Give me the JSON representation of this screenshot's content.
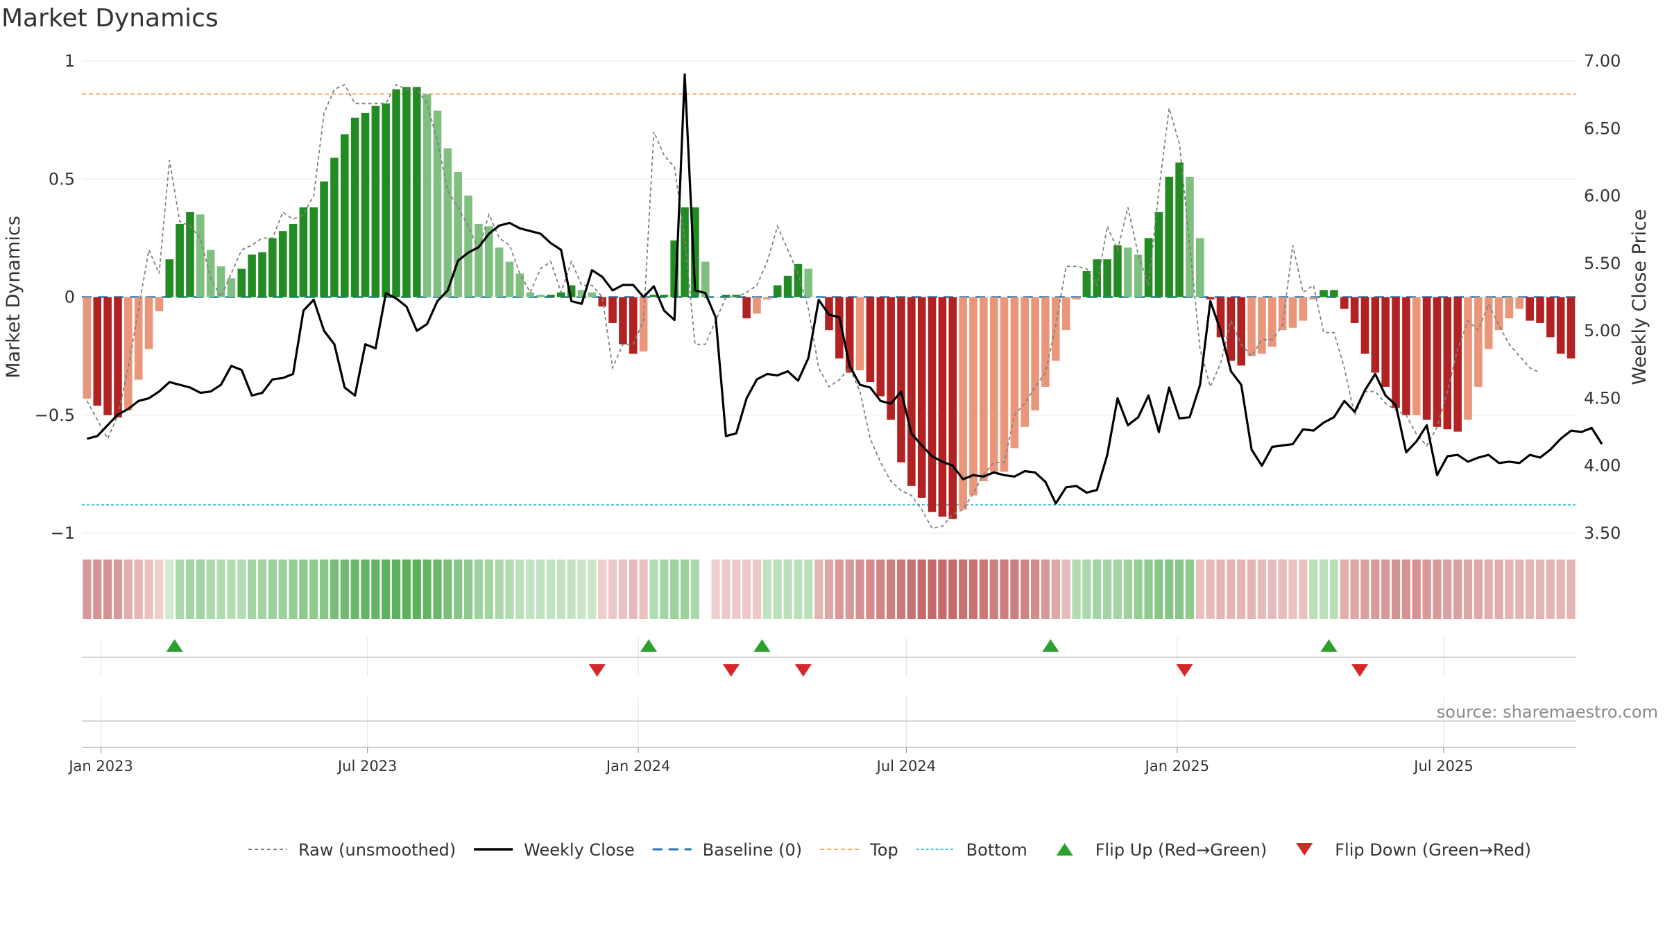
{
  "title": "Market Dynamics",
  "source": "source: sharemaestro.com",
  "colors": {
    "strong_green": "#228b22",
    "light_green": "#7fbf7f",
    "strong_red": "#b22222",
    "light_red": "#e9967a",
    "raw": "#808080",
    "close": "#000000",
    "baseline": "#1f77b4",
    "top": "#f0a860",
    "bottom": "#3cc0d8",
    "flip_up": "#2ca02c",
    "flip_down": "#d62728"
  },
  "chart_data": {
    "type": "bar",
    "x_start": "2022-12-19",
    "frequency": "weekly",
    "y_left": {
      "label": "Market Dynamics",
      "lim": [
        -1,
        1
      ],
      "ticks": [
        1,
        0.5,
        0,
        -0.5,
        -1
      ]
    },
    "y_right": {
      "label": "Weekly Close Price",
      "lim": [
        3.5,
        7.0
      ],
      "ticks": [
        "7.00",
        "6.50",
        "6.00",
        "5.50",
        "5.00",
        "4.50",
        "4.00",
        "3.50"
      ]
    },
    "x_ticks": [
      {
        "date": "2023-01-01",
        "label": "Jan 2023"
      },
      {
        "date": "2023-07-01",
        "label": "Jul 2023"
      },
      {
        "date": "2024-01-01",
        "label": "Jan 2024"
      },
      {
        "date": "2024-07-01",
        "label": "Jul 2024"
      },
      {
        "date": "2025-01-01",
        "label": "Jan 2025"
      },
      {
        "date": "2025-07-01",
        "label": "Jul 2025"
      }
    ],
    "top_line": 0.86,
    "bottom_line": -0.88,
    "smoothed": [
      -0.43,
      -0.46,
      -0.5,
      -0.51,
      -0.48,
      -0.35,
      -0.22,
      -0.06,
      0.16,
      0.31,
      0.36,
      0.35,
      0.2,
      0.13,
      0.08,
      0.12,
      0.18,
      0.19,
      0.25,
      0.28,
      0.31,
      0.38,
      0.38,
      0.49,
      0.59,
      0.69,
      0.76,
      0.78,
      0.81,
      0.82,
      0.88,
      0.89,
      0.89,
      0.86,
      0.79,
      0.63,
      0.53,
      0.43,
      0.31,
      0.3,
      0.21,
      0.15,
      0.1,
      0.02,
      0.01,
      0.01,
      0.02,
      0.05,
      0.03,
      0.02,
      -0.04,
      -0.11,
      -0.2,
      -0.24,
      -0.23,
      0.01,
      0.01,
      0.24,
      0.38,
      0.38,
      0.15,
      0.0,
      0.01,
      0.01,
      -0.09,
      -0.07,
      -0.01,
      0.05,
      0.09,
      0.14,
      0.12,
      0.0,
      -0.14,
      -0.26,
      -0.32,
      -0.31,
      -0.36,
      -0.42,
      -0.52,
      -0.7,
      -0.8,
      -0.85,
      -0.91,
      -0.93,
      -0.94,
      -0.9,
      -0.84,
      -0.78,
      -0.74,
      -0.74,
      -0.64,
      -0.55,
      -0.48,
      -0.38,
      -0.27,
      -0.14,
      -0.01,
      0.11,
      0.16,
      0.16,
      0.22,
      0.21,
      0.18,
      0.25,
      0.36,
      0.51,
      0.57,
      0.51,
      0.25,
      -0.01,
      -0.17,
      -0.27,
      -0.29,
      -0.25,
      -0.24,
      -0.21,
      -0.14,
      -0.13,
      -0.1,
      -0.01,
      0.03,
      0.03,
      -0.05,
      -0.11,
      -0.24,
      -0.32,
      -0.38,
      -0.47,
      -0.5,
      -0.5,
      -0.52,
      -0.55,
      -0.56,
      -0.57,
      -0.52,
      -0.38,
      -0.22,
      -0.14,
      -0.09,
      -0.05,
      -0.1,
      -0.11,
      -0.17,
      -0.24,
      -0.26
    ],
    "raw": [
      -0.44,
      -0.52,
      -0.6,
      -0.5,
      -0.3,
      -0.05,
      0.2,
      0.1,
      0.58,
      0.32,
      0.3,
      0.25,
      0.08,
      0.0,
      0.1,
      0.2,
      0.22,
      0.25,
      0.25,
      0.36,
      0.33,
      0.35,
      0.43,
      0.78,
      0.88,
      0.9,
      0.82,
      0.82,
      0.82,
      0.82,
      0.9,
      0.88,
      0.88,
      0.82,
      0.66,
      0.45,
      0.38,
      0.3,
      0.2,
      0.35,
      0.25,
      0.22,
      0.1,
      0.02,
      0.12,
      0.15,
      0.02,
      0.15,
      0.05,
      0.05,
      0.0,
      -0.3,
      -0.2,
      -0.2,
      -0.1,
      0.7,
      0.6,
      0.55,
      0.25,
      -0.2,
      -0.2,
      -0.1,
      0.0,
      0.0,
      0.02,
      0.05,
      0.15,
      0.3,
      0.2,
      0.1,
      -0.05,
      -0.3,
      -0.38,
      -0.35,
      -0.3,
      -0.4,
      -0.6,
      -0.7,
      -0.78,
      -0.82,
      -0.84,
      -0.9,
      -0.98,
      -0.97,
      -0.92,
      -0.9,
      -0.83,
      -0.75,
      -0.7,
      -0.7,
      -0.5,
      -0.45,
      -0.38,
      -0.32,
      -0.12,
      0.13,
      0.13,
      0.12,
      0.05,
      0.3,
      0.2,
      0.38,
      0.18,
      0.05,
      0.45,
      0.8,
      0.65,
      0.22,
      -0.22,
      -0.38,
      -0.28,
      -0.1,
      -0.2,
      -0.25,
      -0.18,
      -0.18,
      -0.12,
      0.22,
      0.02,
      0.05,
      -0.15,
      -0.15,
      -0.3,
      -0.5,
      -0.4,
      -0.4,
      -0.45,
      -0.48,
      -0.5,
      -0.58,
      -0.63,
      -0.55,
      -0.4,
      -0.22,
      -0.1,
      -0.14,
      -0.03,
      -0.12,
      -0.2,
      -0.25,
      -0.3,
      -0.32
    ],
    "close": [
      4.2,
      4.22,
      4.3,
      4.38,
      4.42,
      4.48,
      4.5,
      4.55,
      4.62,
      4.6,
      4.58,
      4.54,
      4.55,
      4.6,
      4.74,
      4.71,
      4.52,
      4.54,
      4.64,
      4.65,
      4.68,
      5.15,
      5.23,
      5.0,
      4.9,
      4.58,
      4.52,
      4.9,
      4.87,
      5.28,
      5.24,
      5.18,
      5.0,
      5.05,
      5.22,
      5.3,
      5.52,
      5.58,
      5.62,
      5.72,
      5.78,
      5.8,
      5.76,
      5.74,
      5.72,
      5.65,
      5.6,
      5.22,
      5.2,
      5.45,
      5.4,
      5.3,
      5.34,
      5.34,
      5.25,
      5.33,
      5.15,
      5.08,
      6.9,
      5.3,
      5.28,
      5.1,
      4.22,
      4.24,
      4.5,
      4.64,
      4.68,
      4.67,
      4.7,
      4.63,
      4.8,
      5.23,
      5.12,
      5.1,
      4.74,
      4.6,
      4.58,
      4.48,
      4.46,
      4.55,
      4.24,
      4.15,
      4.07,
      4.03,
      4.0,
      3.9,
      3.93,
      3.92,
      3.95,
      3.93,
      3.92,
      3.96,
      3.95,
      3.88,
      3.72,
      3.84,
      3.85,
      3.8,
      3.82,
      4.08,
      4.5,
      4.3,
      4.36,
      4.52,
      4.25,
      4.58,
      4.35,
      4.36,
      4.6,
      5.22,
      5.0,
      4.7,
      4.6,
      4.12,
      4.0,
      4.14,
      4.15,
      4.16,
      4.27,
      4.26,
      4.32,
      4.36,
      4.48,
      4.4,
      4.56,
      4.68,
      4.52,
      4.45,
      4.1,
      4.18,
      4.3,
      3.93,
      4.07,
      4.08,
      4.03,
      4.06,
      4.08,
      4.02,
      4.03,
      4.02,
      4.08,
      4.06,
      4.12,
      4.2,
      4.26,
      4.25,
      4.28,
      4.16
    ],
    "regime_strength": [
      -0.5,
      -0.55,
      -0.55,
      -0.5,
      -0.35,
      -0.3,
      -0.2,
      -0.1,
      0.1,
      0.35,
      0.4,
      0.4,
      0.35,
      0.3,
      0.3,
      0.3,
      0.4,
      0.4,
      0.45,
      0.45,
      0.5,
      0.55,
      0.55,
      0.6,
      0.7,
      0.75,
      0.8,
      0.85,
      0.85,
      0.9,
      0.9,
      0.9,
      0.9,
      0.85,
      0.8,
      0.7,
      0.6,
      0.55,
      0.45,
      0.4,
      0.35,
      0.3,
      0.25,
      0.2,
      0.2,
      0.2,
      0.2,
      0.2,
      0.15,
      0.15,
      -0.1,
      -0.15,
      -0.2,
      -0.25,
      -0.2,
      0.3,
      0.4,
      0.45,
      0.45,
      0.35,
      0.0,
      -0.1,
      -0.15,
      -0.15,
      -0.15,
      -0.15,
      0.2,
      0.25,
      0.25,
      0.25,
      0.25,
      -0.3,
      -0.4,
      -0.5,
      -0.5,
      -0.55,
      -0.6,
      -0.65,
      -0.7,
      -0.75,
      -0.8,
      -0.85,
      -0.85,
      -0.85,
      -0.85,
      -0.8,
      -0.8,
      -0.75,
      -0.7,
      -0.7,
      -0.7,
      -0.65,
      -0.6,
      -0.5,
      -0.4,
      -0.25,
      0.3,
      0.35,
      0.4,
      0.4,
      0.4,
      0.45,
      0.5,
      0.55,
      0.6,
      0.6,
      0.6,
      0.55,
      -0.2,
      -0.25,
      -0.3,
      -0.3,
      -0.3,
      -0.3,
      -0.25,
      -0.25,
      -0.25,
      -0.2,
      -0.2,
      0.25,
      0.25,
      0.25,
      -0.35,
      -0.4,
      -0.45,
      -0.5,
      -0.5,
      -0.55,
      -0.55,
      -0.55,
      -0.5,
      -0.5,
      -0.45,
      -0.45,
      -0.4,
      -0.4,
      -0.35,
      -0.35,
      -0.3,
      -0.3,
      -0.3,
      -0.3,
      -0.3,
      -0.3,
      -0.3
    ],
    "flips_up": [
      "2023-02-20",
      "2024-01-08",
      "2024-03-25",
      "2024-10-07",
      "2025-04-14"
    ],
    "flips_down": [
      "2023-12-04",
      "2024-03-04",
      "2024-04-22",
      "2025-01-06",
      "2025-05-05"
    ],
    "legend": [
      {
        "key": "raw",
        "label": "Raw (unsmoothed)",
        "style": "dashed-gray"
      },
      {
        "key": "close",
        "label": "Weekly Close",
        "style": "solid-black"
      },
      {
        "key": "baseline",
        "label": "Baseline (0)",
        "style": "dashed-blue"
      },
      {
        "key": "top",
        "label": "Top",
        "style": "dashed-orange"
      },
      {
        "key": "bottom",
        "label": "Bottom",
        "style": "dotted-cyan"
      },
      {
        "key": "flip_up",
        "label": "Flip Up (Red→Green)",
        "style": "triangle-up"
      },
      {
        "key": "flip_down",
        "label": "Flip Down (Green→Red)",
        "style": "triangle-down"
      }
    ],
    "legend_position": "bottom-center"
  }
}
